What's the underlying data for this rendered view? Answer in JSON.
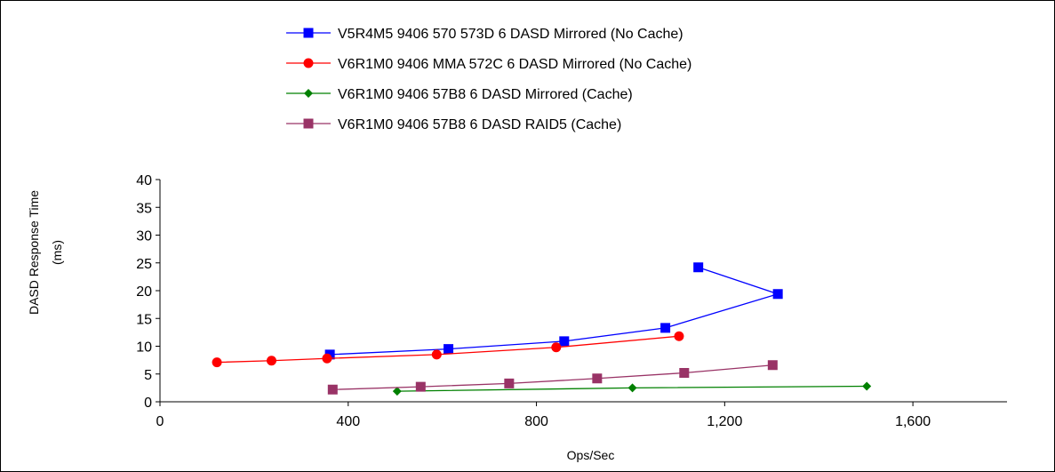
{
  "chart_data": {
    "type": "line",
    "title": "",
    "xlabel": "Ops/Sec",
    "ylabel_lines": [
      "DASD Response Time",
      "(ms)"
    ],
    "xlim": [
      0,
      1800
    ],
    "ylim": [
      0,
      40
    ],
    "x_ticks": [
      {
        "value": 0,
        "label": "0"
      },
      {
        "value": 400,
        "label": "400"
      },
      {
        "value": 800,
        "label": "800"
      },
      {
        "value": 1200,
        "label": "1,200"
      },
      {
        "value": 1600,
        "label": "1,600"
      }
    ],
    "y_ticks": [
      {
        "value": 0,
        "label": "0"
      },
      {
        "value": 5,
        "label": "5"
      },
      {
        "value": 10,
        "label": "10"
      },
      {
        "value": 15,
        "label": "15"
      },
      {
        "value": 20,
        "label": "20"
      },
      {
        "value": 25,
        "label": "25"
      },
      {
        "value": 30,
        "label": "30"
      },
      {
        "value": 35,
        "label": "35"
      },
      {
        "value": 40,
        "label": "40"
      }
    ],
    "grid": false,
    "legend_position": "top-center",
    "series": [
      {
        "name": "V5R4M5 9406 570 573D 6 DASD Mirrored (No Cache)",
        "color": "#0000ff",
        "marker": "square",
        "points": [
          [
            361,
            8.5
          ],
          [
            613,
            9.5
          ],
          [
            859,
            10.9
          ],
          [
            1074,
            13.3
          ],
          [
            1313,
            19.4
          ],
          [
            1144,
            24.2
          ]
        ]
      },
      {
        "name": "V6R1M0 9406 MMA 572C 6 DASD Mirrored (No Cache)",
        "color": "#ff0000",
        "marker": "circle",
        "points": [
          [
            121,
            7.1
          ],
          [
            237,
            7.4
          ],
          [
            355,
            7.8
          ],
          [
            588,
            8.5
          ],
          [
            842,
            9.8
          ],
          [
            1103,
            11.8
          ]
        ]
      },
      {
        "name": "V6R1M0 9406 57B8 6 DASD Mirrored (Cache)",
        "color": "#008000",
        "marker": "diamond",
        "points": [
          [
            504,
            1.9
          ],
          [
            1004,
            2.5
          ],
          [
            1502,
            2.8
          ]
        ]
      },
      {
        "name": "V6R1M0 9406 57B8 6 DASD RAID5 (Cache)",
        "color": "#993366",
        "marker": "square",
        "points": [
          [
            367,
            2.2
          ],
          [
            554,
            2.7
          ],
          [
            742,
            3.3
          ],
          [
            929,
            4.2
          ],
          [
            1114,
            5.2
          ],
          [
            1302,
            6.6
          ]
        ]
      }
    ]
  }
}
